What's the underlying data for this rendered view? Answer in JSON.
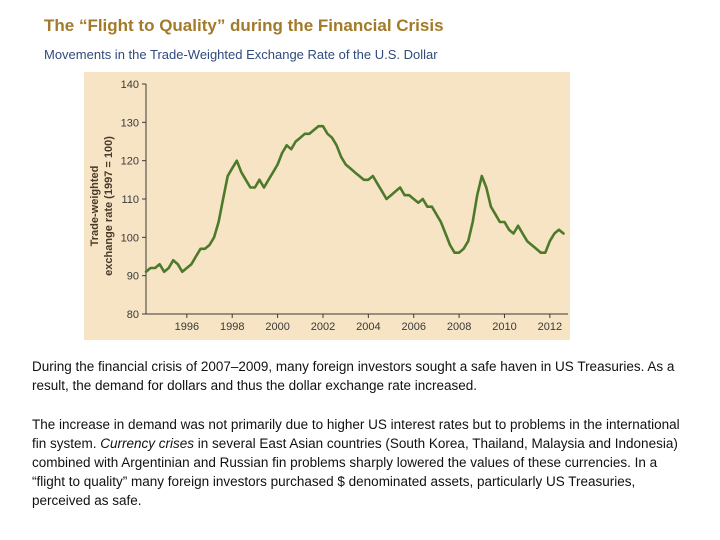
{
  "title": "The “Flight to Quality” during the Financial Crisis",
  "subtitle": "Movements in the Trade-Weighted Exchange Rate of the U.S. Dollar",
  "paragraph1": "During the financial crisis of 2007–2009, many foreign investors sought a safe haven in US Treasuries.  As a result, the demand for dollars and thus the dollar exchange rate increased.",
  "paragraph2": {
    "before": "The increase in demand was not primarily due to higher US interest rates but to problems in the international fin system. ",
    "emphasis": "Currency crises",
    "after": " in several East Asian countries (South Korea, Thailand, Malaysia and Indonesia) combined with Argentinian and Russian fin problems sharply lowered the values of these currencies. In a “flight to quality” many foreign investors purchased $ denominated assets, particularly US Treasuries, perceived as safe."
  },
  "colors": {
    "line": "#4d7a2a",
    "panel": "#f6e4c4",
    "title": "#a27a2a",
    "subtitle": "#2f4b7c"
  },
  "chart_data": {
    "type": "line",
    "title": "",
    "ylabel": "Trade-weighted\nexchange rate (1997 = 100)",
    "xlabel": "",
    "xlim": [
      1994.2,
      2012.8
    ],
    "ylim": [
      80,
      140
    ],
    "y_ticks": [
      80,
      90,
      100,
      110,
      120,
      130,
      140
    ],
    "x_ticks": [
      1996,
      1998,
      2000,
      2002,
      2004,
      2006,
      2008,
      2010,
      2012
    ],
    "grid": false,
    "series": [
      {
        "name": "",
        "x": [
          1994.2,
          1994.4,
          1994.6,
          1994.8,
          1995.0,
          1995.2,
          1995.4,
          1995.6,
          1995.8,
          1996.0,
          1996.2,
          1996.4,
          1996.6,
          1996.8,
          1997.0,
          1997.2,
          1997.4,
          1997.6,
          1997.8,
          1998.0,
          1998.2,
          1998.4,
          1998.6,
          1998.8,
          1999.0,
          1999.2,
          1999.4,
          1999.6,
          1999.8,
          2000.0,
          2000.2,
          2000.4,
          2000.6,
          2000.8,
          2001.0,
          2001.2,
          2001.4,
          2001.6,
          2001.8,
          2002.0,
          2002.2,
          2002.4,
          2002.6,
          2002.8,
          2003.0,
          2003.2,
          2003.4,
          2003.6,
          2003.8,
          2004.0,
          2004.2,
          2004.4,
          2004.6,
          2004.8,
          2005.0,
          2005.2,
          2005.4,
          2005.6,
          2005.8,
          2006.0,
          2006.2,
          2006.4,
          2006.6,
          2006.8,
          2007.0,
          2007.2,
          2007.4,
          2007.6,
          2007.8,
          2008.0,
          2008.2,
          2008.4,
          2008.6,
          2008.8,
          2009.0,
          2009.2,
          2009.4,
          2009.6,
          2009.8,
          2010.0,
          2010.2,
          2010.4,
          2010.6,
          2010.8,
          2011.0,
          2011.2,
          2011.4,
          2011.6,
          2011.8,
          2012.0,
          2012.2,
          2012.4,
          2012.6
        ],
        "y": [
          91,
          92,
          92,
          93,
          91,
          92,
          94,
          93,
          91,
          92,
          93,
          95,
          97,
          97,
          98,
          100,
          104,
          110,
          116,
          118,
          120,
          117,
          115,
          113,
          113,
          115,
          113,
          115,
          117,
          119,
          122,
          124,
          123,
          125,
          126,
          127,
          127,
          128,
          129,
          129,
          127,
          126,
          124,
          121,
          119,
          118,
          117,
          116,
          115,
          115,
          116,
          114,
          112,
          110,
          111,
          112,
          113,
          111,
          111,
          110,
          109,
          110,
          108,
          108,
          106,
          104,
          101,
          98,
          96,
          96,
          97,
          99,
          104,
          111,
          116,
          113,
          108,
          106,
          104,
          104,
          102,
          101,
          103,
          101,
          99,
          98,
          97,
          96,
          96,
          99,
          101,
          102,
          101
        ]
      }
    ]
  }
}
